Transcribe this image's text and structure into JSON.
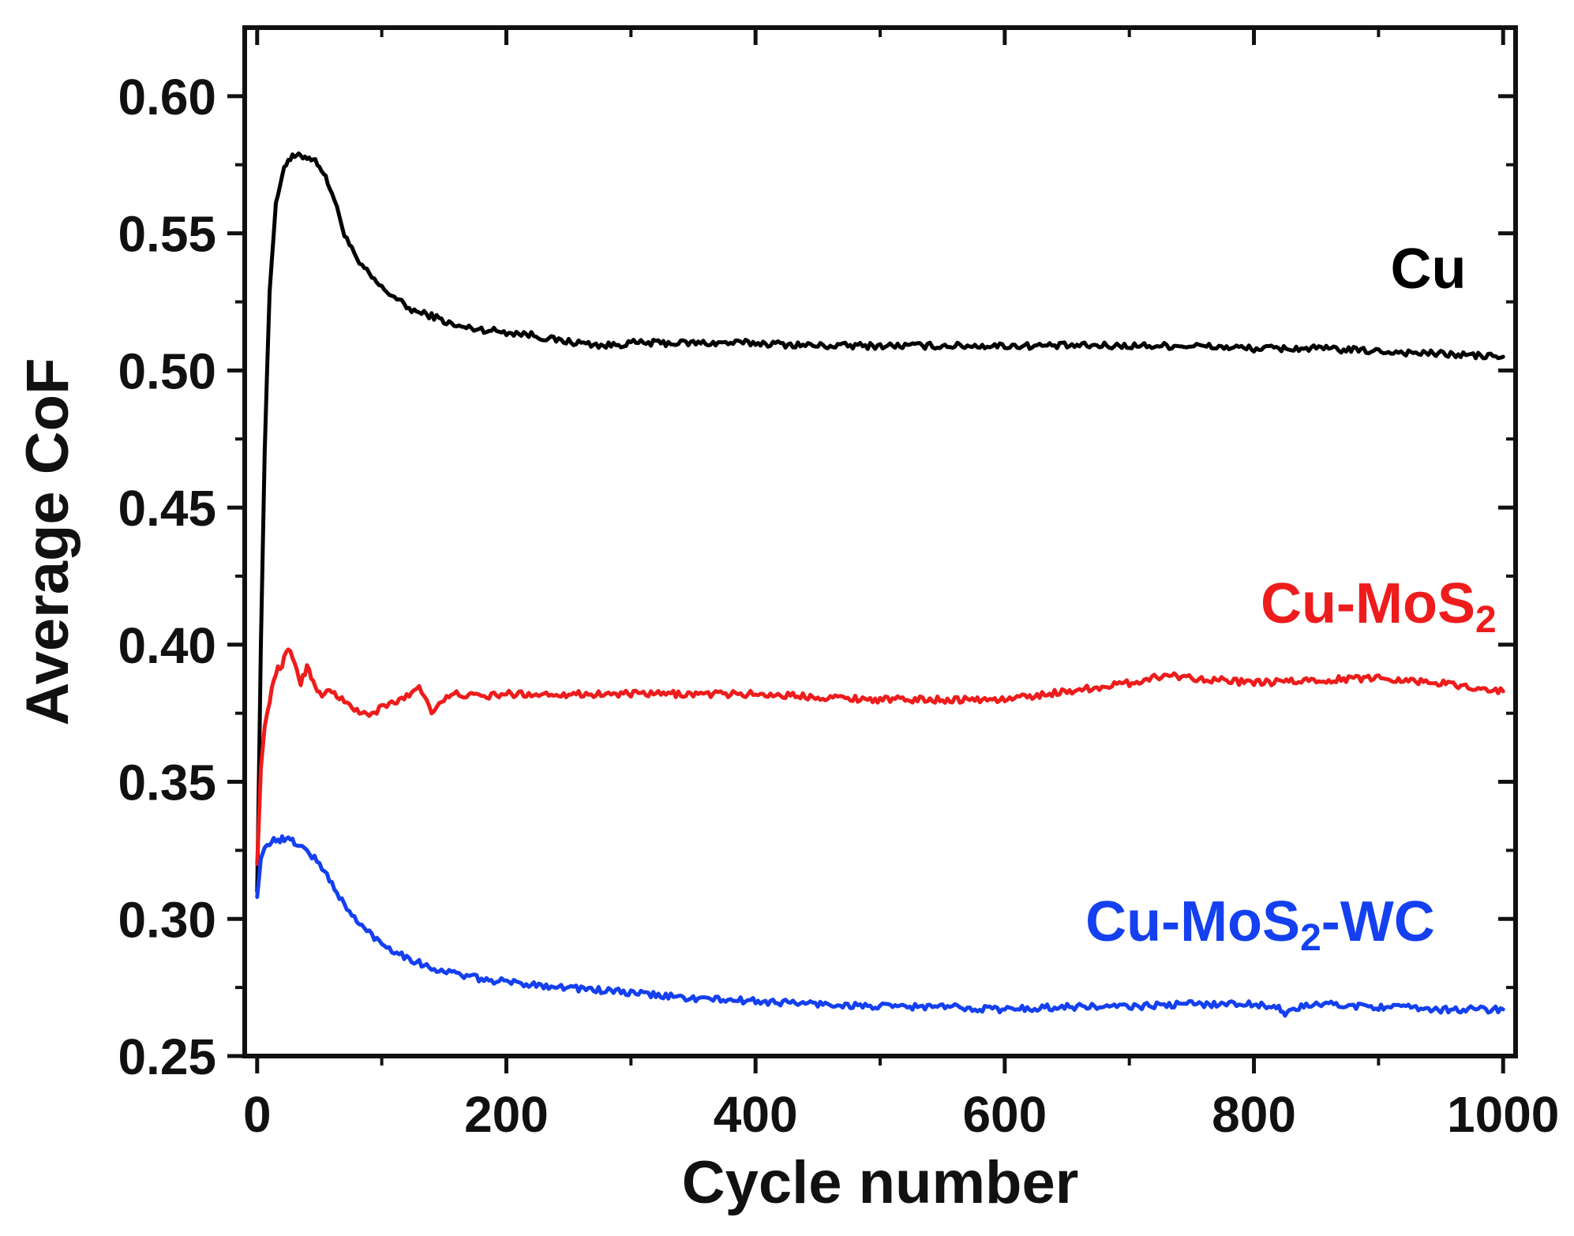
{
  "chart_data": {
    "type": "line",
    "title": "",
    "xlabel": "Cycle number",
    "ylabel": "Average CoF",
    "xlim": [
      -10,
      1010
    ],
    "ylim": [
      0.25,
      0.625
    ],
    "xticks": [
      0,
      200,
      400,
      600,
      800,
      1000
    ],
    "yticks": [
      0.25,
      0.3,
      0.35,
      0.4,
      0.45,
      0.5,
      0.55,
      0.6
    ],
    "xtick_labels": [
      "0",
      "200",
      "400",
      "600",
      "800",
      "1000"
    ],
    "ytick_labels": [
      "0.25",
      "0.30",
      "0.35",
      "0.40",
      "0.45",
      "0.50",
      "0.55",
      "0.60"
    ],
    "grid": false,
    "series": [
      {
        "name": "Cu",
        "label_parts": [
          "Cu"
        ],
        "color": "#000000",
        "x": [
          0,
          3,
          6,
          10,
          15,
          20,
          25,
          30,
          35,
          40,
          45,
          50,
          55,
          60,
          70,
          80,
          90,
          100,
          110,
          120,
          130,
          140,
          150,
          160,
          180,
          200,
          220,
          240,
          260,
          280,
          300,
          350,
          400,
          450,
          500,
          550,
          600,
          650,
          700,
          750,
          800,
          850,
          900,
          950,
          1000
        ],
        "y": [
          0.31,
          0.4,
          0.47,
          0.53,
          0.56,
          0.572,
          0.577,
          0.578,
          0.578,
          0.578,
          0.577,
          0.575,
          0.57,
          0.565,
          0.55,
          0.54,
          0.535,
          0.53,
          0.527,
          0.523,
          0.521,
          0.52,
          0.518,
          0.516,
          0.515,
          0.514,
          0.513,
          0.511,
          0.51,
          0.509,
          0.51,
          0.51,
          0.51,
          0.509,
          0.509,
          0.509,
          0.509,
          0.509,
          0.509,
          0.509,
          0.508,
          0.508,
          0.507,
          0.506,
          0.505
        ]
      },
      {
        "name": "Cu-MoS2",
        "label_parts": [
          "Cu-MoS",
          "2"
        ],
        "color": "#ee1c1c",
        "x": [
          0,
          3,
          6,
          10,
          15,
          20,
          25,
          30,
          35,
          40,
          45,
          50,
          60,
          70,
          80,
          90,
          100,
          110,
          120,
          130,
          140,
          150,
          160,
          180,
          200,
          250,
          300,
          350,
          400,
          450,
          500,
          550,
          600,
          650,
          700,
          730,
          750,
          800,
          850,
          900,
          950,
          1000
        ],
        "y": [
          0.32,
          0.355,
          0.37,
          0.38,
          0.39,
          0.393,
          0.398,
          0.394,
          0.386,
          0.392,
          0.387,
          0.382,
          0.383,
          0.379,
          0.376,
          0.374,
          0.377,
          0.379,
          0.381,
          0.385,
          0.376,
          0.38,
          0.382,
          0.381,
          0.382,
          0.382,
          0.382,
          0.382,
          0.382,
          0.381,
          0.38,
          0.38,
          0.38,
          0.383,
          0.386,
          0.389,
          0.388,
          0.386,
          0.387,
          0.388,
          0.386,
          0.383
        ]
      },
      {
        "name": "Cu-MoS2-WC",
        "label_parts": [
          "Cu-MoS",
          "2",
          "-WC"
        ],
        "color": "#1440f0",
        "x": [
          0,
          3,
          6,
          10,
          15,
          20,
          25,
          30,
          40,
          50,
          60,
          70,
          80,
          90,
          100,
          120,
          140,
          160,
          180,
          200,
          250,
          300,
          350,
          400,
          450,
          500,
          550,
          600,
          650,
          700,
          750,
          800,
          820,
          825,
          830,
          850,
          900,
          950,
          1000
        ],
        "y": [
          0.308,
          0.322,
          0.326,
          0.328,
          0.329,
          0.329,
          0.329,
          0.328,
          0.325,
          0.32,
          0.313,
          0.305,
          0.299,
          0.295,
          0.291,
          0.286,
          0.282,
          0.28,
          0.278,
          0.277,
          0.275,
          0.273,
          0.271,
          0.27,
          0.269,
          0.268,
          0.268,
          0.267,
          0.268,
          0.268,
          0.269,
          0.269,
          0.268,
          0.264,
          0.267,
          0.269,
          0.268,
          0.267,
          0.267
        ]
      }
    ],
    "annotations": [
      {
        "series": "Cu",
        "at": [
          940,
          0.53
        ]
      },
      {
        "series": "Cu-MoS2",
        "at": [
          900,
          0.408
        ]
      },
      {
        "series": "Cu-MoS2-WC",
        "at": [
          805,
          0.292
        ]
      }
    ]
  }
}
